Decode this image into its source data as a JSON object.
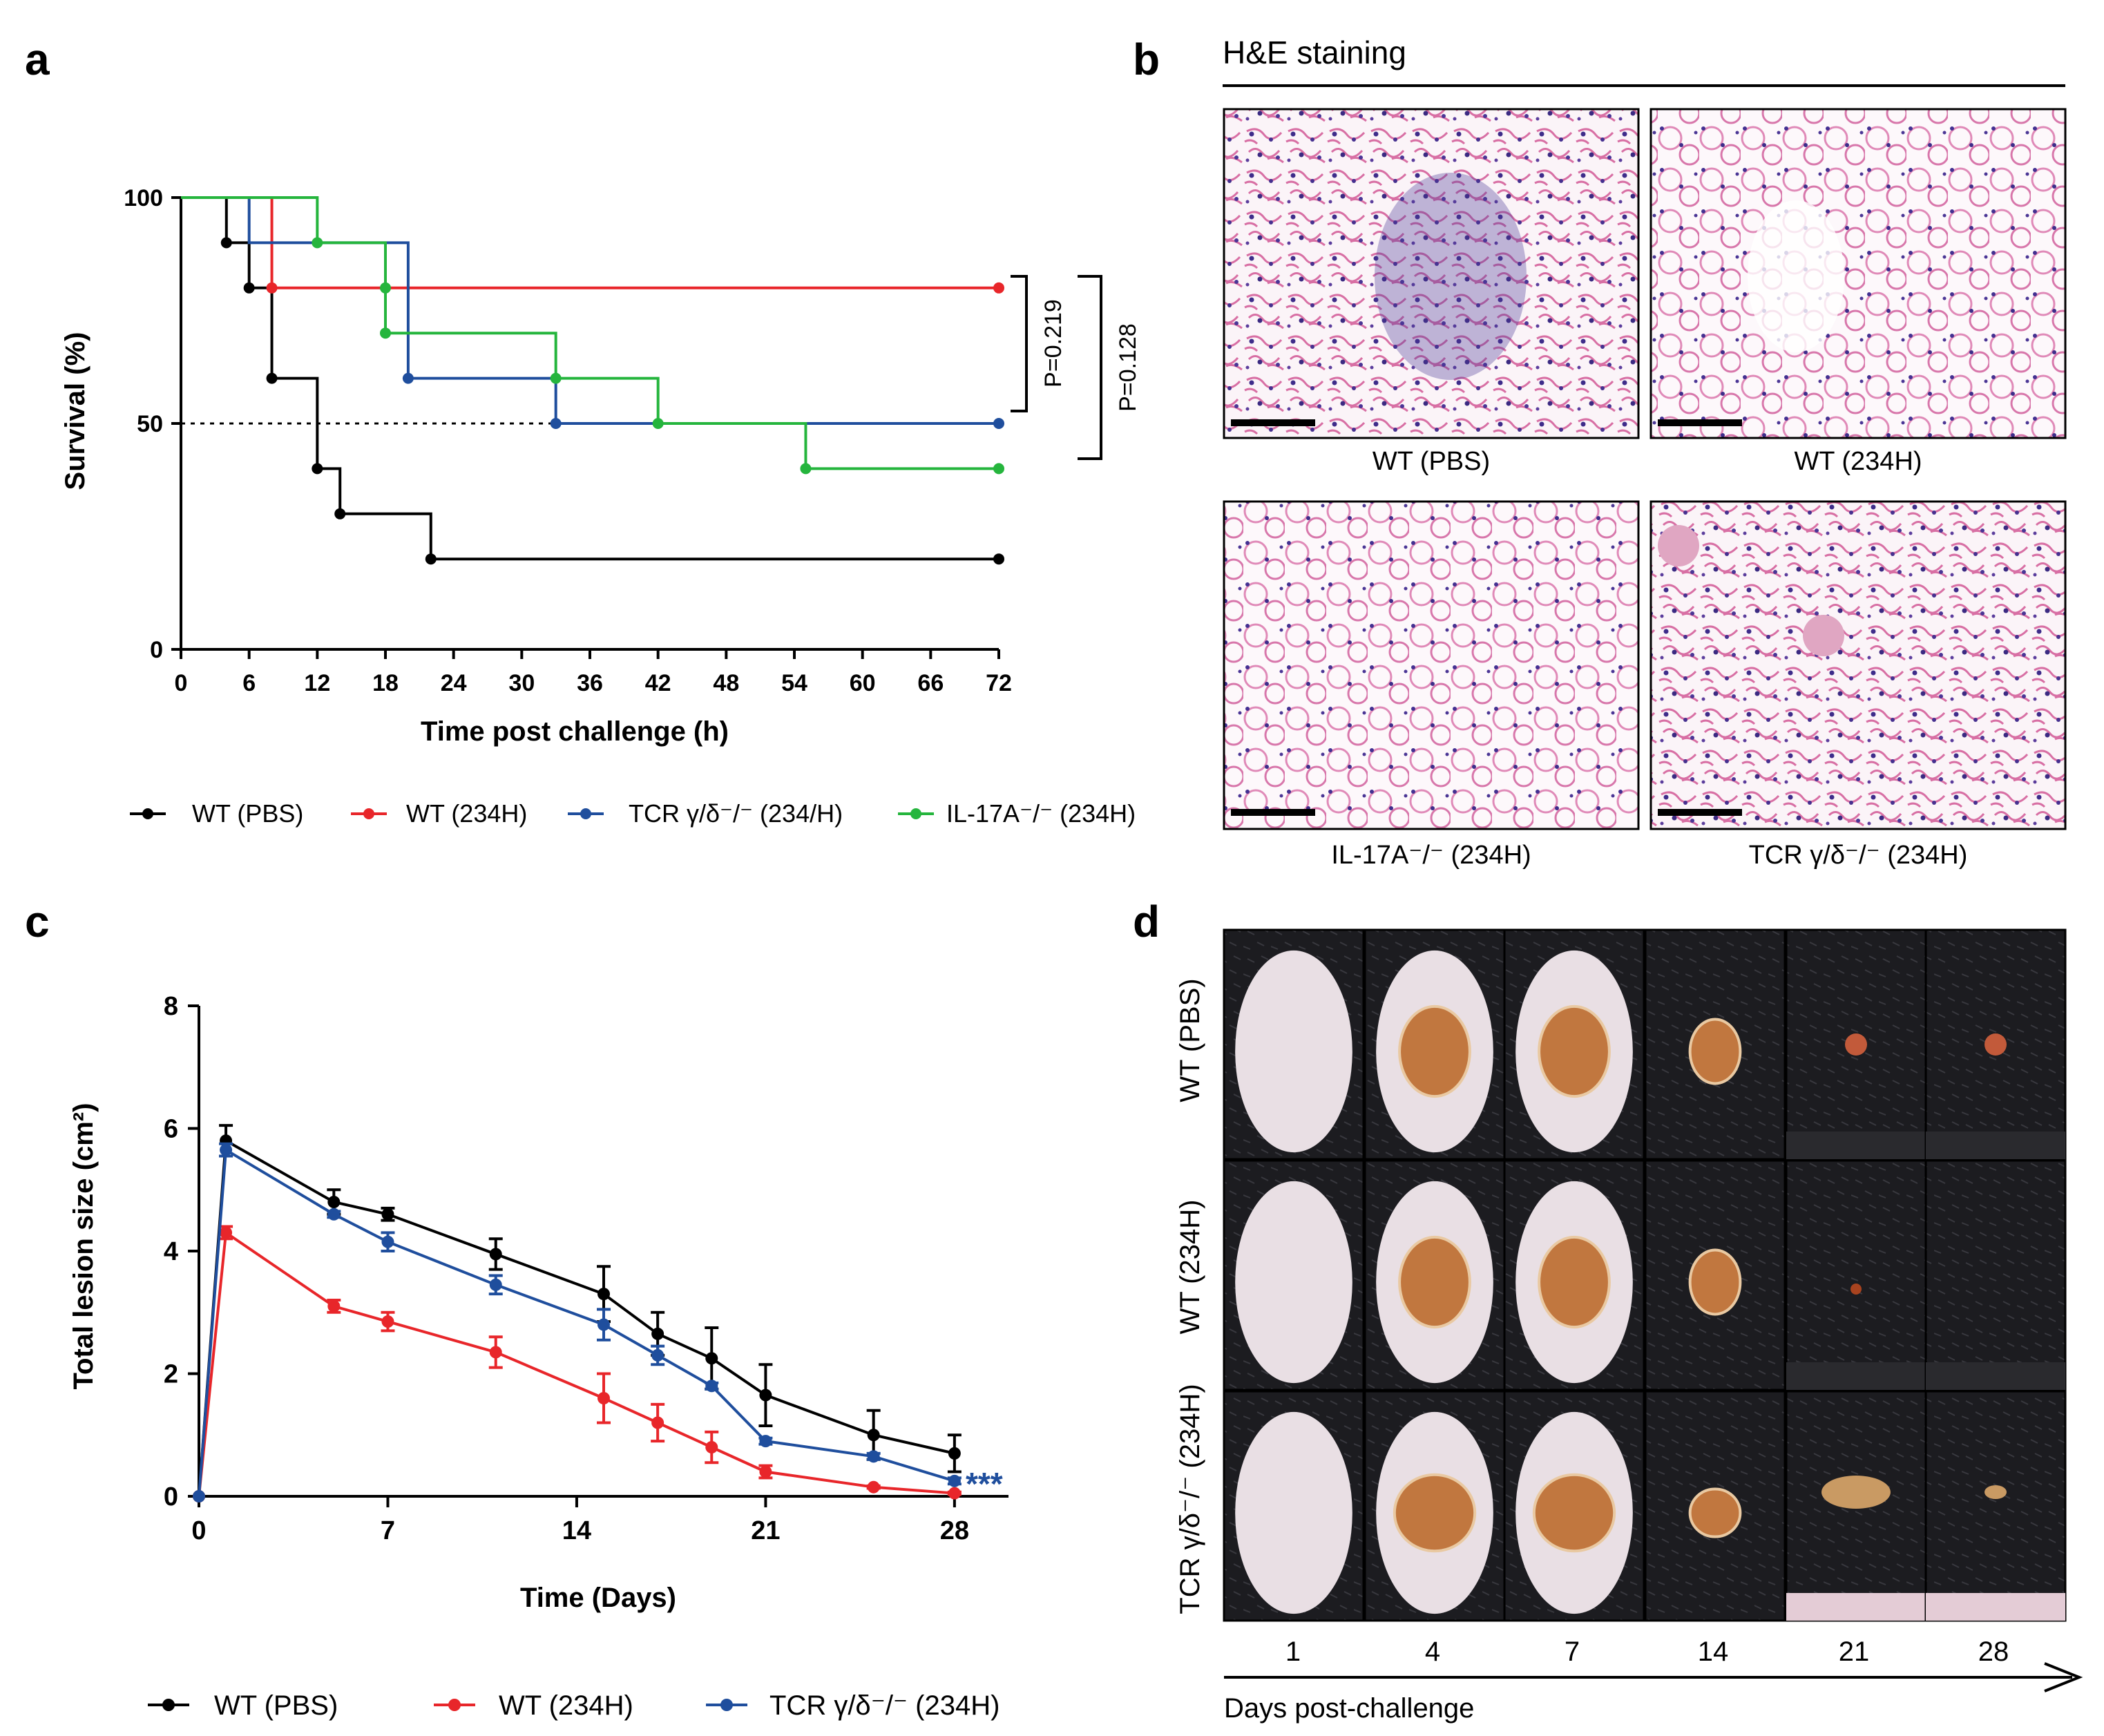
{
  "panel_labels": {
    "a": "a",
    "b": "b",
    "c": "c",
    "d": "d"
  },
  "colors": {
    "wt_pbs": "#000000",
    "wt_234h": "#e8262a",
    "tcr": "#1f4e9d",
    "il17": "#25b53d"
  },
  "panel_b": {
    "title": "H&E staining",
    "captions": [
      "WT (PBS)",
      "WT (234H)",
      "IL-17A⁻/⁻ (234H)",
      "TCR γ/δ⁻/⁻ (234H)"
    ]
  },
  "panel_d": {
    "row_labels": [
      "WT (PBS)",
      "WT (234H)",
      "TCR γ/δ⁻/⁻ (234H)"
    ],
    "days": [
      "1",
      "4",
      "7",
      "14",
      "21",
      "28"
    ],
    "axis_label": "Days post-challenge"
  },
  "chart_data": [
    {
      "type": "line",
      "panel": "a",
      "title": "",
      "xlabel": "Time post challenge (h)",
      "ylabel": "Survival (%)",
      "xlim": [
        0,
        72
      ],
      "ylim": [
        0,
        100
      ],
      "xticks": [
        0,
        6,
        12,
        18,
        24,
        30,
        36,
        42,
        48,
        54,
        60,
        66,
        72
      ],
      "yticks": [
        0,
        50,
        100
      ],
      "reference_line": 50,
      "annotations": [
        "P=0.219",
        "P=0.128"
      ],
      "series": [
        {
          "name": "WT (PBS)",
          "color": "#000000",
          "x": [
            0,
            4,
            6,
            8,
            12,
            14,
            22,
            72
          ],
          "y": [
            100,
            90,
            80,
            60,
            40,
            30,
            20,
            20
          ]
        },
        {
          "name": "WT (234H)",
          "color": "#e8262a",
          "x": [
            0,
            8,
            72
          ],
          "y": [
            100,
            80,
            80
          ]
        },
        {
          "name": "TCR γ/δ⁻/⁻ (234/H)",
          "color": "#1f4e9d",
          "x": [
            0,
            6,
            20,
            33,
            72
          ],
          "y": [
            100,
            90,
            60,
            50,
            50
          ]
        },
        {
          "name": "IL-17A⁻/⁻ (234H)",
          "color": "#25b53d",
          "x": [
            0,
            12,
            18,
            33,
            42,
            55,
            72
          ],
          "y": [
            100,
            90,
            70,
            60,
            50,
            40,
            40
          ]
        }
      ],
      "markers": [
        {
          "series": 0,
          "points": [
            [
              4,
              90
            ],
            [
              6,
              80
            ],
            [
              8,
              60
            ],
            [
              12,
              40
            ],
            [
              14,
              30
            ],
            [
              22,
              20
            ],
            [
              72,
              20
            ]
          ]
        },
        {
          "series": 1,
          "points": [
            [
              8,
              80
            ],
            [
              72,
              80
            ]
          ]
        },
        {
          "series": 2,
          "points": [
            [
              20,
              60
            ],
            [
              33,
              50
            ],
            [
              72,
              50
            ]
          ]
        },
        {
          "series": 3,
          "points": [
            [
              12,
              90
            ],
            [
              18,
              80
            ],
            [
              18,
              70
            ],
            [
              33,
              60
            ],
            [
              42,
              50
            ],
            [
              55,
              40
            ],
            [
              72,
              40
            ]
          ]
        }
      ]
    },
    {
      "type": "line",
      "panel": "c",
      "title": "",
      "xlabel": "Time (Days)",
      "ylabel": "Total lesion size (cm²)",
      "xlim": [
        0,
        30
      ],
      "ylim": [
        0,
        8
      ],
      "xticks": [
        0,
        7,
        14,
        21,
        28
      ],
      "yticks": [
        0,
        2,
        4,
        6,
        8
      ],
      "annotations": [
        "***"
      ],
      "series": [
        {
          "name": "WT (PBS)",
          "color": "#000000",
          "x": [
            0,
            1,
            5,
            7,
            11,
            15,
            17,
            19,
            21,
            25,
            28
          ],
          "y": [
            0,
            5.8,
            4.8,
            4.6,
            3.95,
            3.3,
            2.65,
            2.25,
            1.65,
            1.0,
            0.7
          ],
          "err": [
            0,
            0.25,
            0.2,
            0.1,
            0.25,
            0.45,
            0.35,
            0.5,
            0.5,
            0.4,
            0.3
          ]
        },
        {
          "name": "WT (234H)",
          "color": "#e8262a",
          "x": [
            0,
            1,
            5,
            7,
            11,
            15,
            17,
            19,
            21,
            25,
            28
          ],
          "y": [
            0,
            4.3,
            3.1,
            2.85,
            2.35,
            1.6,
            1.2,
            0.8,
            0.4,
            0.15,
            0.05
          ],
          "err": [
            0,
            0.1,
            0.1,
            0.15,
            0.25,
            0.4,
            0.3,
            0.25,
            0.1,
            0.02,
            0.02
          ]
        },
        {
          "name": "TCR γ/δ⁻/⁻ (234H)",
          "color": "#1f4e9d",
          "x": [
            0,
            1,
            5,
            7,
            11,
            15,
            17,
            19,
            21,
            25,
            28
          ],
          "y": [
            0,
            5.65,
            4.6,
            4.15,
            3.45,
            2.8,
            2.3,
            1.8,
            0.9,
            0.65,
            0.25
          ],
          "err": [
            0,
            0.1,
            0.05,
            0.15,
            0.15,
            0.25,
            0.15,
            0.05,
            0.05,
            0.05,
            0.05
          ]
        }
      ]
    }
  ]
}
